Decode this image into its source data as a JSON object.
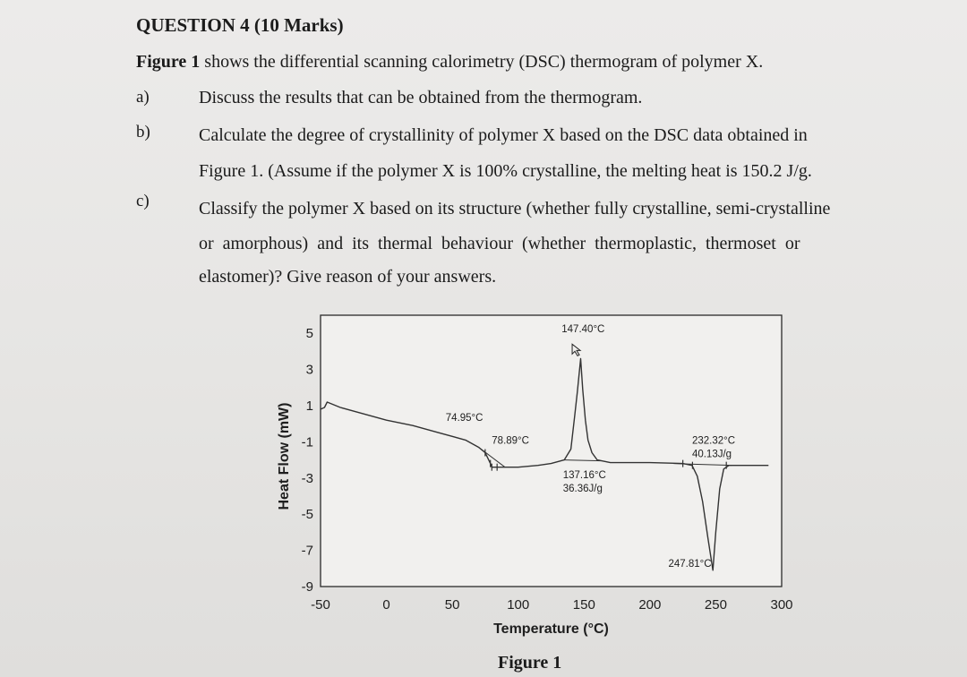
{
  "question": {
    "title": "QUESTION 4 (10 Marks)",
    "intro_bold": "Figure 1",
    "intro_rest": " shows the differential scanning calorimetry (DSC) thermogram of polymer X.",
    "parts": [
      {
        "label": "a)",
        "lines": [
          "Discuss the results that can be obtained from the thermogram."
        ]
      },
      {
        "label": "b)",
        "lines": [
          "Calculate the degree of crystallinity of polymer X based on the DSC data obtained in",
          "Figure 1. (Assume if the polymer X is 100% crystalline, the melting heat is 150.2 J/g."
        ]
      },
      {
        "label": "c)",
        "lines": [
          "Classify the polymer X based on its structure (whether fully crystalline, semi-crystalline",
          "or amorphous) and its thermal behaviour (whether thermoplastic, thermoset or",
          "elastomer)? Give reason of your answers."
        ]
      }
    ]
  },
  "figure": {
    "caption": "Figure 1"
  },
  "chart_data": {
    "type": "line",
    "xlabel": "Temperature (°C)",
    "ylabel": "Heat Flow (mW)",
    "xlim": [
      -50,
      300
    ],
    "ylim": [
      -9,
      6
    ],
    "xticks": [
      "-50",
      "0",
      "50",
      "100",
      "150",
      "200",
      "250",
      "300"
    ],
    "yticks": [
      "5",
      "3",
      "1",
      "-1",
      "-3",
      "-5",
      "-7",
      "-9"
    ],
    "grid": false,
    "series": [
      {
        "x": [
          -50,
          -47,
          -45,
          -35,
          -20,
          0,
          20,
          40,
          60,
          70,
          75,
          78.9,
          80,
          85,
          100,
          115,
          125,
          135,
          140,
          143,
          145,
          147.4,
          149,
          151,
          153,
          156,
          160,
          170,
          200,
          225,
          232,
          236,
          240,
          244,
          247.8,
          250,
          253,
          256,
          260,
          280,
          290
        ],
        "y": [
          0.8,
          0.9,
          1.2,
          0.9,
          0.6,
          0.2,
          -0.1,
          -0.5,
          -0.9,
          -1.3,
          -1.6,
          -2.2,
          -2.4,
          -2.4,
          -2.4,
          -2.3,
          -2.2,
          -2.0,
          -1.4,
          0.5,
          1.8,
          3.6,
          1.9,
          0.2,
          -0.9,
          -1.6,
          -2.0,
          -2.15,
          -2.15,
          -2.2,
          -2.3,
          -2.9,
          -4.3,
          -6.3,
          -8.1,
          -6.0,
          -3.6,
          -2.5,
          -2.3,
          -2.3,
          -2.3
        ]
      }
    ],
    "annotations": [
      {
        "text": "147.40°C",
        "x": 147.4,
        "y": 3.6
      },
      {
        "text": "74.95°C",
        "x": 74.95,
        "y": -1.6
      },
      {
        "text": "78.89°C",
        "x": 78.9,
        "y": -2.2
      },
      {
        "text": "137.16°C",
        "x": 137.16,
        "y": -2.0
      },
      {
        "text": "36.36J/g",
        "x": 137.16,
        "y": -2.0
      },
      {
        "text": "232.32°C",
        "x": 232.32,
        "y": -2.3
      },
      {
        "text": "40.13J/g",
        "x": 232.32,
        "y": -2.3
      },
      {
        "text": "247.81°C",
        "x": 247.81,
        "y": -8.1
      }
    ]
  }
}
